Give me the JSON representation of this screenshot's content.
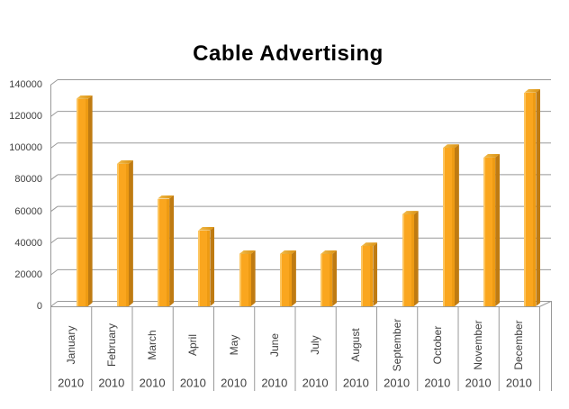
{
  "title": "Cable Advertising",
  "chart_data": {
    "type": "bar",
    "title": "Cable Advertising",
    "categories": [
      "January",
      "February",
      "March",
      "April",
      "May",
      "June",
      "July",
      "August",
      "September",
      "October",
      "November",
      "December"
    ],
    "year_labels": [
      "2010",
      "2010",
      "2010",
      "2010",
      "2010",
      "2010",
      "2010",
      "2010",
      "2010",
      "2010",
      "2010",
      "2010"
    ],
    "values": [
      131000,
      90000,
      68000,
      48000,
      33000,
      33000,
      33000,
      38000,
      58000,
      100000,
      94000,
      135000
    ],
    "y_ticks": [
      0,
      20000,
      40000,
      60000,
      80000,
      100000,
      120000,
      140000
    ],
    "ylim": [
      0,
      140000
    ],
    "xlabel": "",
    "ylabel": "",
    "grid": true,
    "legend_position": "none",
    "style": "3d-bars",
    "colors": {
      "bar_front": "#FAA61E",
      "bar_highlight": "#FDC55F",
      "bar_shade": "#EE9B13",
      "bar_side": "#BF7B12",
      "bar_top_light": "#F2BC4D",
      "bar_top_dark": "#DA9110",
      "gridline": "#999999",
      "axis_line": "#999999",
      "tick_text": "#3F3F3F",
      "title_text": "#000000"
    }
  }
}
